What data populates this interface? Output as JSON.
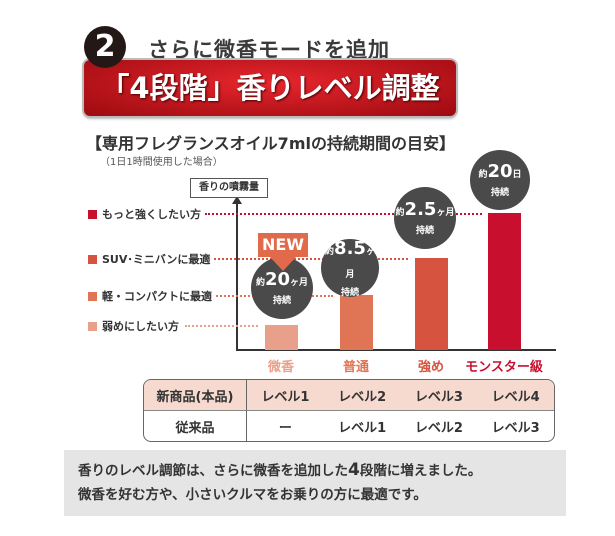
{
  "header": {
    "number": "2",
    "subtitle": "さらに微香モードを追加",
    "banner": "「4段階」香りレベル調整"
  },
  "chart_data": {
    "type": "bar",
    "title": "【専用フレグランスオイル7mlの持続期間の目安】",
    "subtitle": "（1日1時間使用した場合）",
    "ylabel": "香りの噴霧量",
    "categories": [
      "微香",
      "普通",
      "強め",
      "モンスター級"
    ],
    "values": [
      1,
      2,
      3,
      4
    ],
    "durations": [
      {
        "prefix": "約",
        "value": "20",
        "unit": "ヶ月",
        "suffix": "持続"
      },
      {
        "prefix": "約",
        "value": "8.5",
        "unit": "ヶ月",
        "suffix": "持続"
      },
      {
        "prefix": "約",
        "value": "2.5",
        "unit": "ヶ月",
        "suffix": "持続"
      },
      {
        "prefix": "約",
        "value": "20",
        "unit": "日",
        "suffix": "持続"
      }
    ],
    "legend": [
      "弱めにしたい方",
      "軽・コンパクトに最適",
      "SUV･ミニバンに最適",
      "もっと強くしたい方"
    ],
    "colors": [
      "#e9a08b",
      "#e07555",
      "#d6533f",
      "#c8102e"
    ],
    "badge": "NEW"
  },
  "table": {
    "rows": [
      [
        "新商品(本品)",
        "レベル1",
        "レベル2",
        "レベル3",
        "レベル4"
      ],
      [
        "従来品",
        "ー",
        "レベル1",
        "レベル2",
        "レベル3"
      ]
    ]
  },
  "footer": {
    "line1_a": "香りのレベル調節は、さらに微香を追加した",
    "line1_b": "4",
    "line1_c": "段階に増えました。",
    "line2": "微香を好む方や、小さいクルマをお乗りの方に最適です。"
  }
}
